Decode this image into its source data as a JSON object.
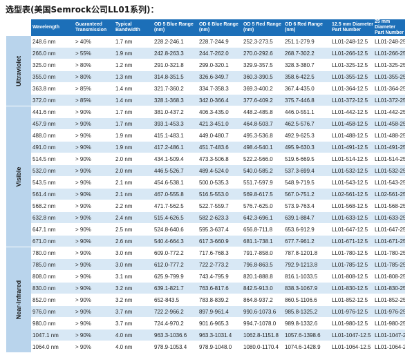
{
  "title": "选型表(美国Semrock公司LL01系列)：",
  "headers": [
    "Wavelength",
    "Guaranteed Transmission",
    "Typical Bandwidth",
    "OD 5 Blue Range (nm)",
    "OD 6 Blue Range (nm)",
    "OD 5 Red Range (nm)",
    "OD 6 Red Range (nm)",
    "12.5 mm Diameter Part Number",
    "25 mm Diameter Part Number"
  ],
  "groups": [
    {
      "name": "Ultraviolet",
      "rows": [
        [
          "248.6 nm",
          "> 40%",
          "1.7 nm",
          "228.2-246.1",
          "228.7-244.9",
          "252.3-273.5",
          "251.1-279.9",
          "LL01-248-12.5",
          "LL01-248-25"
        ],
        [
          "266.0 nm",
          "> 55%",
          "1.9 nm",
          "242.8-263.3",
          "244.7-262.0",
          "270.0-292.6",
          "268.7-302.2",
          "LL01-266-12.5",
          "LL01-266-25"
        ],
        [
          "325.0 nm",
          "> 80%",
          "1.2 nm",
          "291.0-321.8",
          "299.0-320.1",
          "329.9-357.5",
          "328.3-380.7",
          "LL01-325-12.5",
          "LL01-325-25"
        ],
        [
          "355.0 nm",
          "> 80%",
          "1.3 nm",
          "314.8-351.5",
          "326.6-349.7",
          "360.3-390.5",
          "358.6-422.5",
          "LL01-355-12.5",
          "LL01-355-25"
        ],
        [
          "363.8 nm",
          "> 85%",
          "1.4 nm",
          "321.7-360.2",
          "334.7-358.3",
          "369.3-400.2",
          "367.4-435.0",
          "LL01-364-12.5",
          "LL01-364-25"
        ],
        [
          "372.0 nm",
          "> 85%",
          "1.4 nm",
          "328.1-368.3",
          "342.0-366.4",
          "377.6-409.2",
          "375.7-446.8",
          "LL01-372-12.5",
          "LL01-372-25"
        ]
      ]
    },
    {
      "name": "Visible",
      "rows": [
        [
          "441.6 nm",
          "> 90%",
          "1.7 nm",
          "381.0-437.2",
          "406.3-435.0",
          "448.2-485.8",
          "446.0-551.1",
          "LL01-442-12.5",
          "LL01-442-25"
        ],
        [
          "457.9 nm",
          "> 90%",
          "1.7 nm",
          "393.1-453.3",
          "421.3-451.0",
          "464.8-503.7",
          "462.5-576.7",
          "LL01-458-12.5",
          "LL01-458-25"
        ],
        [
          "488.0 nm",
          "> 90%",
          "1.9 nm",
          "415.1-483.1",
          "449.0-480.7",
          "495.3-536.8",
          "492.9-625.3",
          "LL01-488-12.5",
          "LL01-488-25"
        ],
        [
          "491.0 nm",
          "> 90%",
          "1.9 nm",
          "417.2-486.1",
          "451.7-483.6",
          "498.4-540.1",
          "495.9-630.3",
          "LL01-491-12.5",
          "LL01-491-25"
        ],
        [
          "514.5 nm",
          "> 90%",
          "2.0 nm",
          "434.1-509.4",
          "473.3-506.8",
          "522.2-566.0",
          "519.6-669.5",
          "LL01-514-12.5",
          "LL01-514-25"
        ],
        [
          "532.0 nm",
          "> 90%",
          "2.0 nm",
          "446.5-526.7",
          "489.4-524.0",
          "540.0-585.2",
          "537.3-699.4",
          "LL01-532-12.5",
          "LL01-532-25"
        ],
        [
          "543.5 nm",
          "> 90%",
          "2.1 nm",
          "454.6-538.1",
          "500.0-535.3",
          "551.7-597.9",
          "548.9-719.5",
          "LL01-543-12.5",
          "LL01-543-25"
        ],
        [
          "561.4 nm",
          "> 90%",
          "2.1 nm",
          "467.0-555.8",
          "516.5-553.0",
          "569.8-617.5",
          "567.0-751.2",
          "LL02-561-12.5",
          "LL02-561-25"
        ],
        [
          "568.2 nm",
          "> 90%",
          "2.2 nm",
          "471.7-562.5",
          "522.7-559.7",
          "576.7-625.0",
          "573.9-763.4",
          "LL01-568-12.5",
          "LL01-568-25"
        ],
        [
          "632.8 nm",
          "> 90%",
          "2.4 nm",
          "515.4-626.5",
          "582.2-623.3",
          "642.3-696.1",
          "639.1-884.7",
          "LL01-633-12.5",
          "LL01-633-25"
        ],
        [
          "647.1 nm",
          "> 90%",
          "2.5 nm",
          "524.8-640.6",
          "595.3-637.4",
          "656.8-711.8",
          "653.6-912.9",
          "LL01-647-12.5",
          "LL01-647-25"
        ],
        [
          "671.0 nm",
          "> 90%",
          "2.6 nm",
          "540.4-664.3",
          "617.3-660.9",
          "681.1-738.1",
          "677.7-961.2",
          "LL01-671-12.5",
          "LL01-671-25"
        ]
      ]
    },
    {
      "name": "Near-Infrared",
      "rows": [
        [
          "780.0 nm",
          "> 90%",
          "3.0 nm",
          "609.0-772.2",
          "717.6-768.3",
          "791.7-858.0",
          "787.8-1201.8",
          "LL01-780-12.5",
          "LL01-780-25"
        ],
        [
          "785.0 nm",
          "> 90%",
          "3.0 nm",
          "612.0-777.2",
          "722.2-773.2",
          "796.8-863.5",
          "792.9-1213.8",
          "LL01-785-12.5",
          "LL01-785-25"
        ],
        [
          "808.0 nm",
          "> 90%",
          "3.1 nm",
          "625.9-799.9",
          "743.4-795.9",
          "820.1-888.8",
          "816.1-1033.5",
          "LL01-808-12.5",
          "LL01-808-25"
        ],
        [
          "830.0 nm",
          "> 90%",
          "3.2 nm",
          "639.1-821.7",
          "763.6-817.6",
          "842.5-913.0",
          "838.3-1067.9",
          "LL01-830-12.5",
          "LL01-830-25"
        ],
        [
          "852.0 nm",
          "> 90%",
          "3.2 nm",
          "652-843.5",
          "783.8-839.2",
          "864.8-937.2",
          "860.5-1106.6",
          "LL01-852-12.5",
          "LL01-852-25"
        ],
        [
          "976.0 nm",
          "> 90%",
          "3.7 nm",
          "722.2-966.2",
          "897.9-961.4",
          "990.6-1073.6",
          "985.8-1325.2",
          "LL01-976-12.5",
          "LL01-976-25"
        ],
        [
          "980.0 nm",
          "> 90%",
          "3.7 nm",
          "724.4-970.2",
          "901.6-965.3",
          "994.7-1078.0",
          "989.8-1332.6",
          "LL01-980-12.5",
          "LL01-980-25"
        ],
        [
          "1047.1 nm",
          "> 90%",
          "4.0 nm",
          "963.3-1036.6",
          "963.3-1031.4",
          "1062.8-1151.8",
          "1057.6-1398.6",
          "LL01-1047-12.5",
          "LL01-1047-25"
        ],
        [
          "1064.0 nm",
          "> 90%",
          "4.0 nm",
          "978.9-1053.4",
          "978.9-1048.0",
          "1080.0-1170.4",
          "1074.6-1428.9",
          "LL01-1064-12.5",
          "LL01-1064-25"
        ]
      ]
    }
  ]
}
